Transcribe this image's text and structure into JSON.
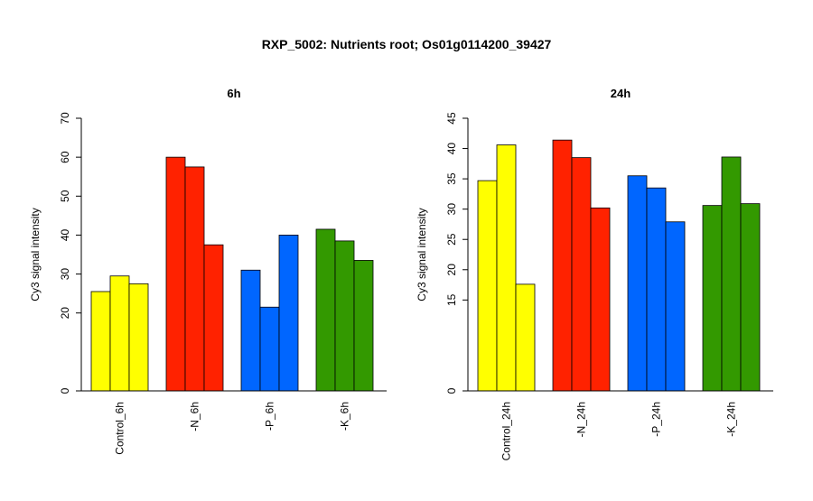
{
  "figure": {
    "title": "RXP_5002: Nutrients root; Os01g0114200_39427"
  },
  "chart_data": [
    {
      "type": "bar",
      "title": "6h",
      "xlabel": "",
      "ylabel": "Cy3 signal intensity",
      "categories": [
        "Control_6h",
        "-N_6h",
        "-P_6h",
        "-K_6h"
      ],
      "group_colors": [
        "#ffff00",
        "#ff2200",
        "#0066ff",
        "#339900"
      ],
      "values": [
        [
          25.5,
          29.5,
          27.5
        ],
        [
          60.0,
          57.5,
          37.5
        ],
        [
          31.0,
          21.5,
          40.0
        ],
        [
          41.5,
          38.5,
          33.5
        ]
      ],
      "ylim": [
        0,
        70
      ],
      "yticks": [
        0,
        20,
        30,
        40,
        50,
        60,
        70
      ],
      "ytick_labels": [
        "0",
        "20",
        "30",
        "40",
        "50",
        "60",
        "70"
      ],
      "grid": false,
      "legend": "none"
    },
    {
      "type": "bar",
      "title": "24h",
      "xlabel": "",
      "ylabel": "Cy3 signal intensity",
      "categories": [
        "Control_24h",
        "-N_24h",
        "-P_24h",
        "-K_24h"
      ],
      "group_colors": [
        "#ffff00",
        "#ff2200",
        "#0066ff",
        "#339900"
      ],
      "values": [
        [
          34.7,
          40.6,
          17.6
        ],
        [
          41.4,
          38.5,
          30.2
        ],
        [
          35.5,
          33.5,
          27.9
        ],
        [
          30.6,
          38.6,
          30.9
        ]
      ],
      "ylim": [
        0,
        45
      ],
      "yticks": [
        0,
        15,
        20,
        25,
        30,
        35,
        40,
        45
      ],
      "ytick_labels": [
        "0",
        "15",
        "20",
        "25",
        "30",
        "35",
        "40",
        "45"
      ],
      "grid": false,
      "legend": "none"
    }
  ]
}
